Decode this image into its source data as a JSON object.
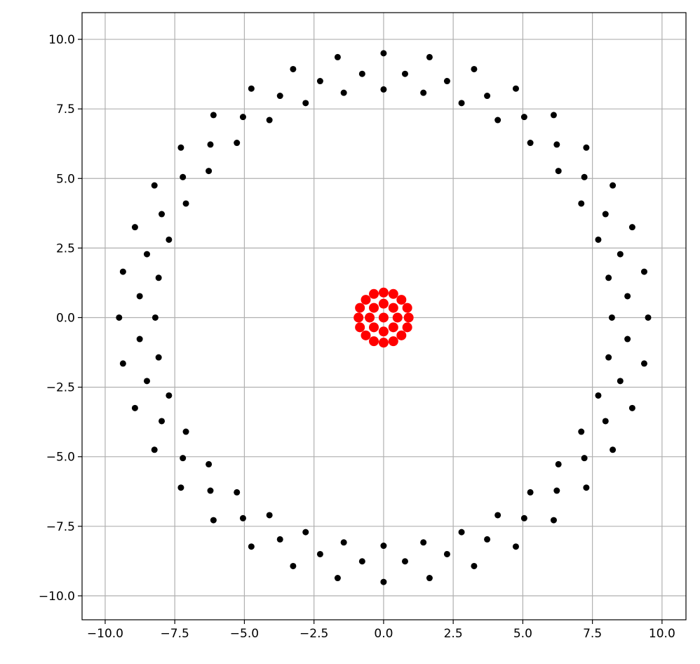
{
  "chart_data": {
    "type": "scatter",
    "xlim": [
      -10.83,
      10.86
    ],
    "ylim": [
      -10.86,
      10.96
    ],
    "grid": true,
    "xticks": [
      {
        "value": -10,
        "label": "−10.0"
      },
      {
        "value": -7.5,
        "label": "−7.5"
      },
      {
        "value": -5,
        "label": "−5.0"
      },
      {
        "value": -2.5,
        "label": "−2.5"
      },
      {
        "value": 0,
        "label": "0.0"
      },
      {
        "value": 2.5,
        "label": "2.5"
      },
      {
        "value": 5,
        "label": "5.0"
      },
      {
        "value": 7.5,
        "label": "7.5"
      },
      {
        "value": 10,
        "label": "10.0"
      }
    ],
    "yticks": [
      {
        "value": -10,
        "label": "−10.0"
      },
      {
        "value": -7.5,
        "label": "−7.5"
      },
      {
        "value": -5,
        "label": "−5.0"
      },
      {
        "value": -2.5,
        "label": "−2.5"
      },
      {
        "value": 0,
        "label": "0.0"
      },
      {
        "value": 2.5,
        "label": "2.5"
      },
      {
        "value": 5,
        "label": "5.0"
      },
      {
        "value": 7.5,
        "label": "7.5"
      },
      {
        "value": 10,
        "label": "10.0"
      }
    ],
    "series": [
      {
        "color": "#000000",
        "x": [
          8.2,
          8.08,
          7.71,
          7.1,
          6.28,
          5.27,
          4.1,
          2.8,
          1.43,
          0,
          -1.43,
          -2.8,
          -4.1,
          -5.27,
          -6.28,
          -7.1,
          -7.71,
          -8.08,
          -8.2,
          -8.08,
          -7.71,
          -7.1,
          -6.28,
          -5.27,
          -4.1,
          -2.8,
          -1.43,
          0,
          1.43,
          2.8,
          4.1,
          5.27,
          6.28,
          7.1,
          7.71,
          8.08,
          9.5,
          9.36,
          8.93,
          8.23,
          7.28,
          6.11,
          4.75,
          3.25,
          1.65,
          0,
          -1.65,
          -3.25,
          -4.75,
          -6.11,
          -7.28,
          -8.23,
          -8.93,
          -9.36,
          -9.5,
          -9.36,
          -8.93,
          -8.23,
          -7.28,
          -6.11,
          -4.75,
          -3.25,
          -1.65,
          0,
          1.65,
          3.25,
          4.75,
          6.11,
          7.28,
          8.23,
          8.93,
          9.36,
          8.76,
          8.5,
          7.97,
          7.21,
          6.22,
          5.05,
          3.72,
          2.28,
          0.77,
          -0.77,
          -2.28,
          -3.72,
          -5.05,
          -6.22,
          -7.21,
          -7.97,
          -8.5,
          -8.76,
          -8.76,
          -8.5,
          -7.97,
          -7.21,
          -6.22,
          -5.05,
          -3.72,
          -2.28,
          -0.77,
          0.77,
          2.28,
          3.72,
          5.05,
          6.22,
          7.21,
          7.97,
          8.5,
          8.76
        ],
        "values": [
          0,
          1.43,
          2.8,
          4.1,
          5.27,
          6.28,
          7.1,
          7.71,
          8.08,
          8.2,
          8.08,
          7.71,
          7.1,
          6.28,
          5.27,
          4.1,
          2.8,
          1.43,
          0,
          -1.43,
          -2.8,
          -4.1,
          -5.27,
          -6.28,
          -7.1,
          -7.71,
          -8.08,
          -8.2,
          -8.08,
          -7.71,
          -7.1,
          -6.28,
          -5.27,
          -4.1,
          -2.8,
          -1.43,
          0,
          1.65,
          3.25,
          4.75,
          6.11,
          7.28,
          8.23,
          8.93,
          9.36,
          9.5,
          9.36,
          8.93,
          8.23,
          7.28,
          6.11,
          4.75,
          3.25,
          1.65,
          0,
          -1.65,
          -3.25,
          -4.75,
          -6.11,
          -7.28,
          -8.23,
          -8.93,
          -9.36,
          -9.5,
          -9.36,
          -8.93,
          -8.23,
          -7.28,
          -6.11,
          -4.75,
          -3.25,
          -1.65,
          0.77,
          2.28,
          3.72,
          5.05,
          6.22,
          7.21,
          7.97,
          8.5,
          8.76,
          8.76,
          8.5,
          7.97,
          7.21,
          6.22,
          5.05,
          3.72,
          2.28,
          0.77,
          -0.77,
          -2.28,
          -3.72,
          -5.05,
          -6.22,
          -7.21,
          -7.97,
          -8.5,
          -8.76,
          -8.76,
          -8.5,
          -7.97,
          -7.21,
          -6.22,
          -5.05,
          -3.72,
          -2.28,
          -0.77
        ]
      },
      {
        "color": "#ff0000",
        "x": [
          0,
          0.5,
          -0.5,
          0,
          0,
          0.9,
          -0.9,
          0,
          0,
          0.64,
          -0.64,
          0.64,
          -0.64,
          0.35,
          -0.35,
          0.35,
          -0.35,
          0.85,
          -0.85,
          0.85,
          -0.85,
          0.35,
          -0.35,
          0.35,
          -0.35
        ],
        "values": [
          0,
          0,
          0,
          0.5,
          -0.5,
          0,
          0,
          0.9,
          -0.9,
          0.64,
          0.64,
          -0.64,
          -0.64,
          0.35,
          0.35,
          -0.35,
          -0.35,
          0.35,
          0.35,
          -0.35,
          -0.35,
          0.85,
          0.85,
          -0.85,
          -0.85
        ]
      }
    ]
  }
}
